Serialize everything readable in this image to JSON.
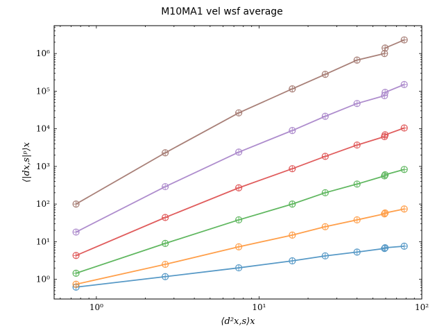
{
  "chart_data": {
    "type": "line",
    "title": "M10MA1 vel wsf average",
    "xlabel": "⟨d²x,s⟩x",
    "ylabel": "⟨|dx,s|ᵖ⟩x",
    "xscale": "log",
    "yscale": "log",
    "xlim": [
      0.55,
      100
    ],
    "ylim": [
      0.3,
      5500000
    ],
    "x_ticks": [
      1,
      10,
      100
    ],
    "x_tick_labels": [
      "10⁰",
      "10¹",
      "10²"
    ],
    "y_ticks": [
      1,
      10,
      100,
      1000,
      10000,
      100000,
      1000000
    ],
    "y_tick_labels": [
      "10⁰",
      "10¹",
      "10²",
      "10³",
      "10⁴",
      "10⁵",
      "10⁶"
    ],
    "grid": false,
    "markers": "hollow-circle-plus",
    "x": [
      0.75,
      2.65,
      7.5,
      16,
      25.5,
      40,
      59,
      59.5,
      78
    ],
    "series": [
      {
        "color": "#1f77b4",
        "values": [
          0.62,
          1.18,
          2.02,
          3.1,
          4.2,
          5.3,
          6.6,
          6.9,
          7.6
        ]
      },
      {
        "color": "#ff7f0e",
        "values": [
          0.74,
          2.5,
          7.3,
          15,
          25,
          38,
          55,
          58,
          74
        ]
      },
      {
        "color": "#2ca02c",
        "values": [
          1.45,
          9.0,
          38,
          100,
          200,
          340,
          560,
          600,
          830
        ]
      },
      {
        "color": "#d62728",
        "values": [
          4.3,
          44,
          270,
          870,
          1850,
          3700,
          6200,
          6900,
          10500
        ]
      },
      {
        "color": "#9467bd",
        "values": [
          18,
          290,
          2400,
          9000,
          21500,
          47000,
          76000,
          93000,
          150000
        ]
      },
      {
        "color": "#8c564b",
        "values": [
          100,
          2300,
          26500,
          115000,
          280000,
          670000,
          1000000,
          1400000,
          2300000
        ]
      }
    ]
  }
}
